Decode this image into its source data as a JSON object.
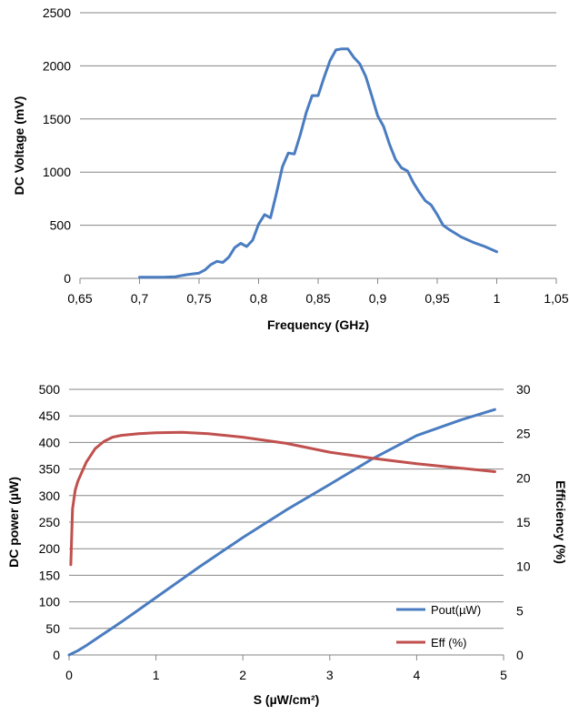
{
  "chart_data": [
    {
      "type": "line",
      "title": "",
      "xlabel": "Frequency (GHz)",
      "ylabel": "DC Voltage (mV)",
      "xlim": [
        0.65,
        1.05
      ],
      "ylim": [
        0,
        2500
      ],
      "grid": "horizontal",
      "legend": "none",
      "x_ticks": [
        "0,65",
        "0,7",
        "0,75",
        "0,8",
        "0,85",
        "0,9",
        "0,95",
        "1",
        "1,05"
      ],
      "y_ticks": [
        "0",
        "500",
        "1000",
        "1500",
        "2000",
        "2500"
      ],
      "series": [
        {
          "color": "#4a7cc0",
          "x": [
            0.7,
            0.71,
            0.72,
            0.73,
            0.74,
            0.75,
            0.755,
            0.76,
            0.765,
            0.77,
            0.775,
            0.78,
            0.785,
            0.79,
            0.795,
            0.8,
            0.805,
            0.81,
            0.815,
            0.82,
            0.825,
            0.83,
            0.835,
            0.84,
            0.845,
            0.85,
            0.855,
            0.86,
            0.865,
            0.87,
            0.875,
            0.88,
            0.885,
            0.89,
            0.895,
            0.9,
            0.905,
            0.91,
            0.915,
            0.92,
            0.925,
            0.93,
            0.935,
            0.94,
            0.945,
            0.95,
            0.955,
            0.96,
            0.97,
            0.98,
            0.99,
            1.0
          ],
          "y": [
            10,
            10,
            10,
            15,
            35,
            50,
            80,
            130,
            160,
            150,
            200,
            290,
            330,
            300,
            360,
            510,
            600,
            570,
            800,
            1050,
            1180,
            1170,
            1350,
            1560,
            1720,
            1720,
            1890,
            2050,
            2150,
            2160,
            2160,
            2080,
            2020,
            1900,
            1720,
            1530,
            1430,
            1260,
            1120,
            1040,
            1010,
            900,
            810,
            730,
            690,
            600,
            500,
            460,
            390,
            340,
            300,
            250
          ]
        }
      ]
    },
    {
      "type": "line",
      "title": "",
      "xlabel": "S (µW/cm²)",
      "ylabel": "DC power (µW)",
      "y2label": "Efficiency (%)",
      "xlim": [
        0,
        5
      ],
      "ylim": [
        0,
        500
      ],
      "y2lim": [
        0,
        30
      ],
      "grid": "horizontal",
      "legend": "bottom-right",
      "x_ticks": [
        "0",
        "1",
        "2",
        "3",
        "4",
        "5"
      ],
      "y_ticks": [
        "0",
        "50",
        "100",
        "150",
        "200",
        "250",
        "300",
        "350",
        "400",
        "450",
        "500"
      ],
      "y2_ticks": [
        "0",
        "5",
        "10",
        "15",
        "20",
        "25",
        "30"
      ],
      "series": [
        {
          "name": "Pout(µW)",
          "color": "#4a7cc0",
          "axis": "left",
          "x": [
            0,
            0.1,
            0.2,
            0.4,
            0.6,
            0.8,
            1.0,
            1.5,
            2.0,
            2.5,
            3.0,
            3.5,
            4.0,
            4.5,
            4.9
          ],
          "y": [
            0,
            8,
            18,
            40,
            62,
            85,
            108,
            166,
            221,
            273,
            321,
            370,
            413,
            442,
            462
          ]
        },
        {
          "name": "Eff (%)",
          "color": "#c0504d",
          "axis": "right",
          "x": [
            0.02,
            0.04,
            0.07,
            0.1,
            0.15,
            0.2,
            0.3,
            0.4,
            0.5,
            0.6,
            0.8,
            1.0,
            1.3,
            1.6,
            2.0,
            2.5,
            3.0,
            3.5,
            4.0,
            4.5,
            4.9
          ],
          "y": [
            10.2,
            16.5,
            18.6,
            19.6,
            20.7,
            21.8,
            23.3,
            24.1,
            24.6,
            24.8,
            25.0,
            25.1,
            25.15,
            25.0,
            24.6,
            23.9,
            22.9,
            22.2,
            21.6,
            21.1,
            20.7
          ]
        }
      ]
    }
  ]
}
